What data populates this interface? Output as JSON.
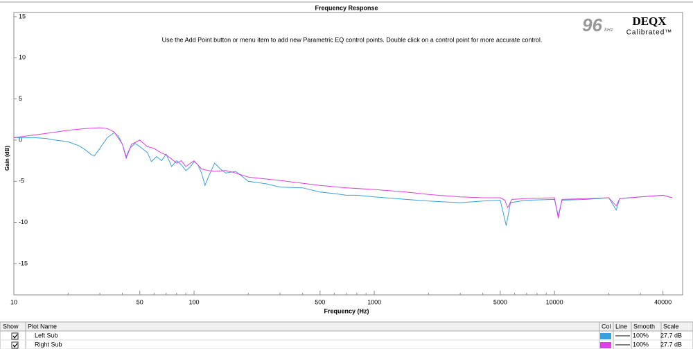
{
  "chart_data": {
    "type": "line",
    "title": "Frequency Response",
    "subtitle": "Use the Add Point button or menu item to add new Parametric EQ control points.  Double click on a control point for more accurate control.",
    "xlabel": "Frequency (Hz)",
    "ylabel": "Gain (dB)",
    "xscale": "log",
    "xlim": [
      10,
      51400
    ],
    "ylim": [
      -18.8,
      15.5
    ],
    "xticks": [
      10,
      50,
      100,
      500,
      1000,
      5000,
      10000,
      40000
    ],
    "xminorticks": [
      20,
      30,
      40,
      60,
      70,
      80,
      90,
      200,
      300,
      400,
      600,
      700,
      800,
      900,
      2000,
      3000,
      4000,
      6000,
      7000,
      8000,
      9000,
      20000,
      30000
    ],
    "yticks": [
      15,
      10,
      5,
      0,
      -5,
      -10,
      -15
    ],
    "grid": false,
    "series": [
      {
        "name": "Left Sub",
        "color": "#3aa0db",
        "x": [
          10,
          13,
          15,
          17,
          20,
          23,
          25,
          27,
          28,
          30,
          33,
          36,
          38,
          40,
          42,
          44,
          47,
          50,
          55,
          58,
          62,
          66,
          70,
          75,
          80,
          85,
          90,
          95,
          100,
          105,
          110,
          115,
          120,
          130,
          140,
          150,
          170,
          180,
          200,
          250,
          300,
          400,
          500,
          600,
          700,
          800,
          1000,
          1500,
          2000,
          3000,
          4000,
          5000,
          5400,
          5700,
          7000,
          10000,
          10500,
          11000,
          15000,
          20000,
          22000,
          23000,
          30000,
          40000,
          45000
        ],
        "values": [
          0.3,
          0.3,
          0.2,
          0.0,
          -0.2,
          -0.7,
          -1.2,
          -1.8,
          -1.9,
          -1.0,
          0.3,
          0.9,
          0.5,
          -0.5,
          -2.0,
          -1.0,
          -0.4,
          -0.8,
          -1.5,
          -2.6,
          -2.0,
          -2.5,
          -1.7,
          -3.2,
          -2.5,
          -3.0,
          -3.7,
          -3.3,
          -2.6,
          -3.0,
          -4.0,
          -5.5,
          -4.5,
          -2.8,
          -3.5,
          -4.0,
          -3.8,
          -4.2,
          -5.0,
          -5.3,
          -5.7,
          -5.8,
          -6.3,
          -6.5,
          -6.7,
          -6.7,
          -6.9,
          -7.2,
          -7.4,
          -7.6,
          -7.4,
          -7.3,
          -10.4,
          -7.6,
          -7.3,
          -7.2,
          -9.2,
          -7.3,
          -7.2,
          -7.0,
          -8.5,
          -7.1,
          -6.9,
          -6.7,
          -7.0
        ]
      },
      {
        "name": "Right Sub",
        "color": "#e040e0",
        "x": [
          10,
          15,
          20,
          25,
          30,
          33,
          36,
          40,
          42,
          45,
          50,
          55,
          60,
          65,
          70,
          75,
          80,
          85,
          90,
          100,
          110,
          120,
          130,
          150,
          170,
          200,
          300,
          500,
          700,
          1000,
          1500,
          2000,
          3000,
          4000,
          5000,
          5300,
          5500,
          5800,
          7000,
          10000,
          10500,
          11000,
          15000,
          20000,
          22000,
          23000,
          30000,
          40000,
          45000
        ],
        "values": [
          0.3,
          0.8,
          1.2,
          1.4,
          1.5,
          1.4,
          1.0,
          -0.5,
          -2.2,
          -0.5,
          0.0,
          -0.8,
          -1.0,
          -1.5,
          -1.8,
          -2.3,
          -2.8,
          -2.5,
          -3.2,
          -2.5,
          -3.5,
          -3.7,
          -3.8,
          -3.7,
          -4.0,
          -4.5,
          -4.9,
          -5.5,
          -5.8,
          -6.0,
          -6.3,
          -6.6,
          -6.9,
          -7.0,
          -7.0,
          -7.3,
          -8.2,
          -7.2,
          -7.1,
          -7.0,
          -9.5,
          -7.2,
          -7.1,
          -7.0,
          -8.0,
          -7.1,
          -6.9,
          -6.7,
          -7.0
        ]
      }
    ]
  },
  "logo": {
    "rate": "96",
    "unit": "kHz",
    "brand": "DEQX",
    "tag": "Calibrated™"
  },
  "table": {
    "columns": [
      "Show",
      "Plot Name",
      "Col",
      "Line",
      "Smooth",
      "Scale"
    ],
    "rows": [
      {
        "name": "Left Sub",
        "smooth": "100%",
        "scale": "27.7 dB"
      },
      {
        "name": "Right Sub",
        "smooth": "100%",
        "scale": "27.7 dB"
      }
    ]
  }
}
